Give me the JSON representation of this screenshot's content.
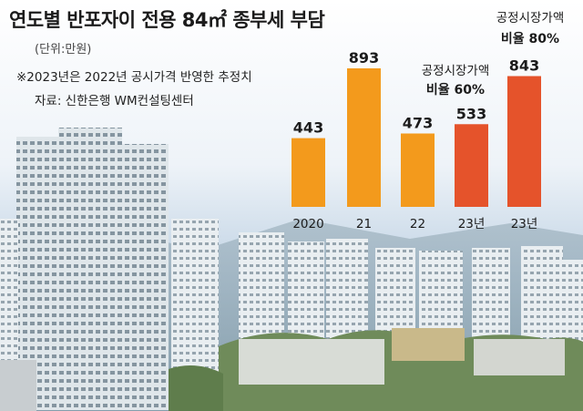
{
  "title": "연도별 반포자이 전용 84㎡ 종부세 부담",
  "unit": "(단위:만원)",
  "note": "※2023년은 2022년 공시가격 반영한 추정치",
  "source": "자료: 신한은행 WM컨설팅센터",
  "colors": {
    "orange": "#f39a1c",
    "red": "#e5532b"
  },
  "chart_data": {
    "type": "bar",
    "categories": [
      "2020",
      "21",
      "22",
      "23년",
      "23년"
    ],
    "values": [
      443,
      893,
      473,
      533,
      843
    ],
    "bar_colors": [
      "#f39a1c",
      "#f39a1c",
      "#f39a1c",
      "#e5532b",
      "#e5532b"
    ],
    "annotations": [
      {
        "category_index": 3,
        "line1": "공정시장가액",
        "line2": "비율 60%"
      },
      {
        "category_index": 4,
        "line1": "공정시장가액",
        "line2": "비율 80%"
      }
    ],
    "ylim": [
      0,
      1000
    ]
  }
}
